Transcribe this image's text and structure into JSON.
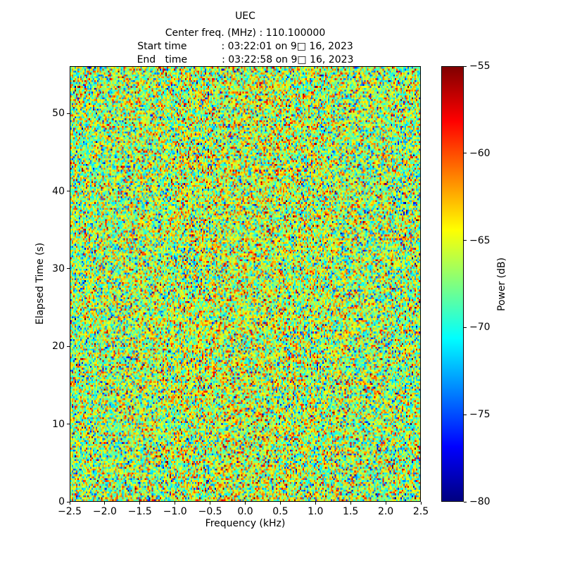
{
  "chart_data": {
    "type": "heatmap",
    "title": "UEC",
    "header_lines": {
      "center_freq": "Center freq. (MHz) : 110.100000",
      "start_time": "Start time           : 03:22:01 on 9□ 16, 2023",
      "end_time": "End   time           : 03:22:58 on 9□ 16, 2023"
    },
    "xlabel": "Frequency (kHz)",
    "ylabel": "Elapsed Time (s)",
    "colorbar_label": "Power (dB)",
    "xlim": [
      -2.5,
      2.5
    ],
    "ylim": [
      0,
      56.1
    ],
    "clim": [
      -80,
      -55
    ],
    "xticks": [
      -2.5,
      -2.0,
      -1.5,
      -1.0,
      -0.5,
      0.0,
      0.5,
      1.0,
      1.5,
      2.0,
      2.5
    ],
    "xtick_labels": [
      "−2.5",
      "−2.0",
      "−1.5",
      "−1.0",
      "−0.5",
      "0.0",
      "0.5",
      "1.0",
      "1.5",
      "2.0",
      "2.5"
    ],
    "yticks": [
      0,
      10,
      20,
      30,
      40,
      50
    ],
    "ytick_labels": [
      "0",
      "10",
      "20",
      "30",
      "40",
      "50"
    ],
    "colorbar_ticks": [
      -55,
      -60,
      -65,
      -70,
      -75,
      -80
    ],
    "colorbar_tick_labels": [
      "−55",
      "−60",
      "−65",
      "−70",
      "−75",
      "−80"
    ],
    "colormap": "jet",
    "colormap_stops": [
      {
        "v": 0.0,
        "color": "#000080"
      },
      {
        "v": 0.125,
        "color": "#0000ff"
      },
      {
        "v": 0.375,
        "color": "#00ffff"
      },
      {
        "v": 0.625,
        "color": "#ffff00"
      },
      {
        "v": 0.875,
        "color": "#ff0000"
      },
      {
        "v": 1.0,
        "color": "#800000"
      }
    ],
    "grid_on": false,
    "legend": "none",
    "data_model": {
      "description": "broadband random noise spectrogram; per-cell power in dB, gaussian i.i.d. with a faint warm band near 0 kHz",
      "rows": 228,
      "cols": 250,
      "noise_mean_db": -66.8,
      "noise_std_db": 4.2,
      "center_bump_db": 0.9,
      "center_bump_sigma_khz": 1.0,
      "seed": 916
    },
    "frame_color": "#000000",
    "background_color": "#ffffff"
  }
}
